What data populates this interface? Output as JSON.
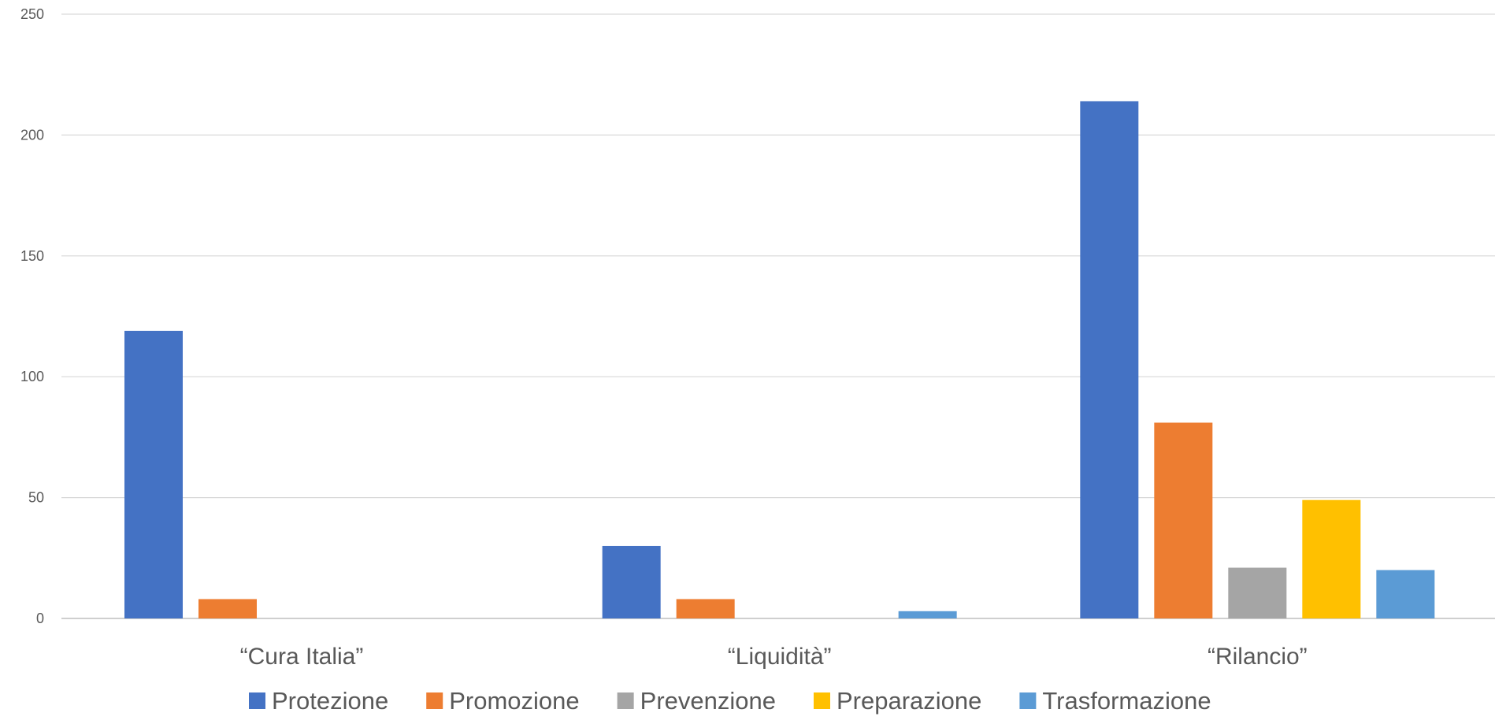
{
  "chart_data": {
    "type": "bar",
    "categories": [
      "“Cura Italia”",
      "“Liquidità”",
      "“Rilancio”"
    ],
    "series": [
      {
        "name": "Protezione",
        "color": "#4472C4",
        "values": [
          119,
          30,
          214
        ]
      },
      {
        "name": "Promozione",
        "color": "#ED7D31",
        "values": [
          8,
          8,
          81
        ]
      },
      {
        "name": "Prevenzione",
        "color": "#A5A5A5",
        "values": [
          0,
          0,
          21
        ]
      },
      {
        "name": "Preparazione",
        "color": "#FFC000",
        "values": [
          0,
          0,
          49
        ]
      },
      {
        "name": "Trasformazione",
        "color": "#5B9BD5",
        "values": [
          0,
          3,
          20
        ]
      }
    ],
    "title": "",
    "xlabel": "",
    "ylabel": "",
    "ylim": [
      0,
      250
    ],
    "yticks": [
      0,
      50,
      100,
      150,
      200,
      250
    ],
    "grid": true,
    "legend_position": "bottom"
  }
}
